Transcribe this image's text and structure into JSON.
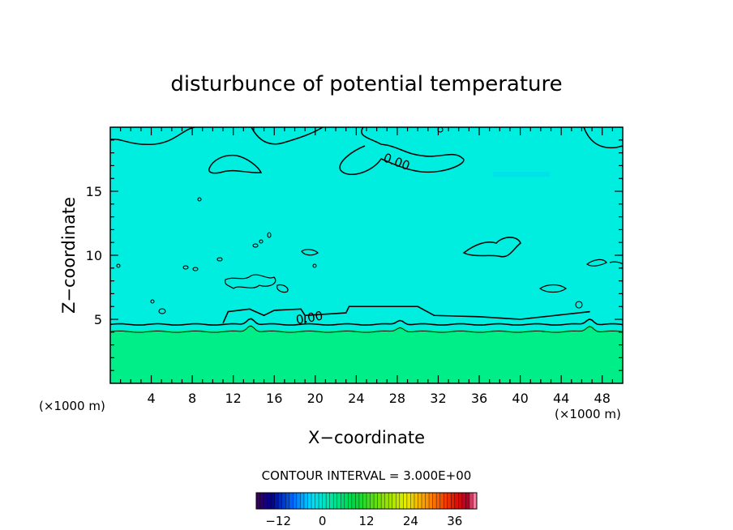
{
  "chart_data": {
    "type": "heatmap",
    "title": "disturbunce of potential temperature",
    "xlabel": "X−coordinate",
    "ylabel": "Z−coordinate",
    "x_units": "(×1000 m)",
    "z_units": "(×1000 m)",
    "xlim": [
      0,
      50
    ],
    "ylim": [
      0,
      20
    ],
    "x_ticks": [
      4,
      8,
      12,
      16,
      20,
      24,
      28,
      32,
      36,
      40,
      44,
      48
    ],
    "x_tick_labels": [
      "4",
      "8",
      "12",
      "16",
      "20",
      "24",
      "28",
      "32",
      "36",
      "40",
      "44",
      "48"
    ],
    "y_ticks": [
      5,
      10,
      15
    ],
    "y_tick_labels": [
      "5",
      "10",
      "15"
    ],
    "contour_labels": [
      {
        "text": "0.00",
        "x": 27.8,
        "z": 17.0
      },
      {
        "text": "0.00",
        "x": 19.5,
        "z": 4.8
      }
    ],
    "contour_interval_text": "CONTOUR INTERVAL = 3.000E+00",
    "colorbar": {
      "min": -18,
      "max": 42,
      "tick_values": [
        -12,
        0,
        12,
        24,
        36
      ],
      "tick_labels": [
        "−12",
        "0",
        "12",
        "24",
        "36"
      ]
    },
    "field": {
      "upper_region_color": "#00eee0",
      "lower_region_color": "#00ee88",
      "zero_contour_base_z": 4.6
    }
  }
}
